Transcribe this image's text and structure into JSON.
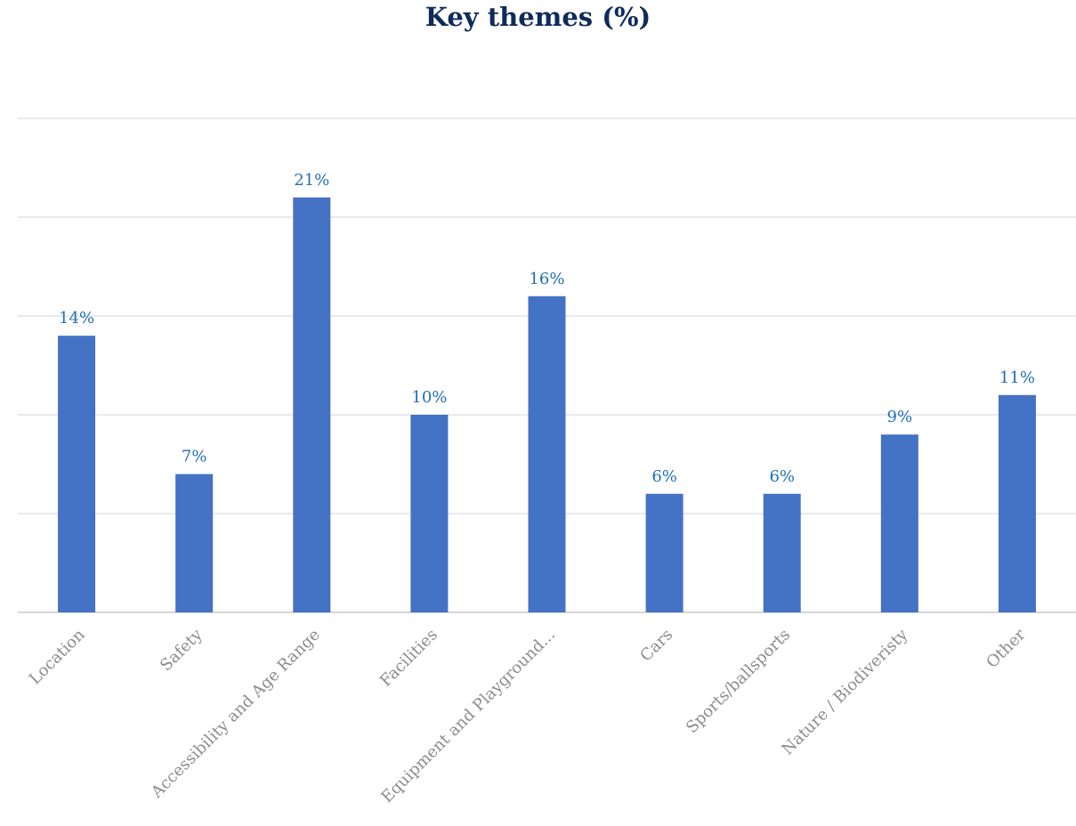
{
  "chart_data": {
    "type": "bar",
    "title": "Key themes (%)",
    "categories": [
      "Location",
      "Safety",
      "Accessibility and Age Range",
      "Facilities",
      "Equipment and Playground...",
      "Cars",
      "Sports/ballsports",
      "Nature / Biodiveristy",
      "Other"
    ],
    "values": [
      14,
      7,
      21,
      10,
      16,
      6,
      6,
      9,
      11
    ],
    "data_labels": [
      "14%",
      "7%",
      "21%",
      "10%",
      "16%",
      "6%",
      "6%",
      "9%",
      "11%"
    ],
    "ylim": [
      0,
      25
    ],
    "y_gridlines": [
      0,
      5,
      10,
      15,
      20,
      25
    ],
    "y_tick_labels_shown": false,
    "grid": true,
    "legend": "none",
    "colors": {
      "bar": "#4472c4",
      "data_label": "#1f6fb5",
      "title": "#0f2b5b",
      "tick_label": "#8c8c8c",
      "gridline": "#e3e3e3"
    }
  }
}
